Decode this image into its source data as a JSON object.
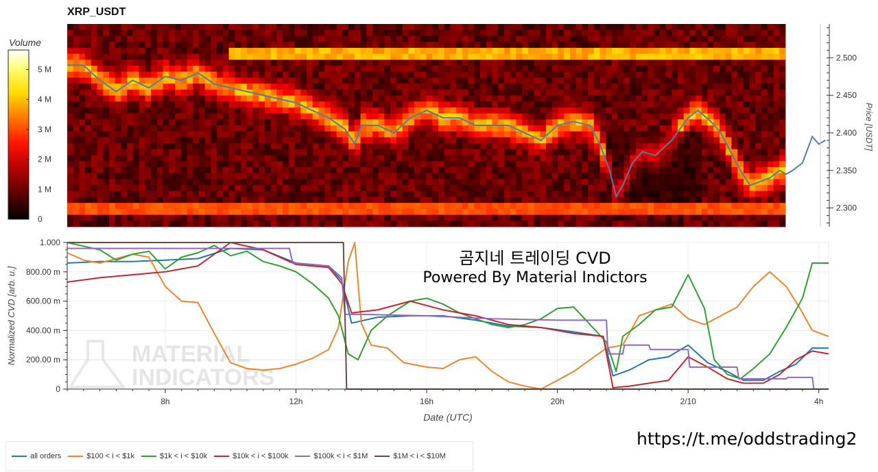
{
  "header": {
    "title": "XRP_USDT"
  },
  "overlay": {
    "line1": "곰지네 트레이딩 CVD",
    "line2": "Powered By Material Indictors"
  },
  "watermark": {
    "line1": "MATERIAL",
    "line2": "INDICATORS",
    "icon": "flask-icon"
  },
  "footer": {
    "link": "https://t.me/oddstrading2"
  },
  "colorbar": {
    "label": "Volume",
    "ticks": [
      "0",
      "1 M",
      "2 M",
      "3 M",
      "4 M",
      "5 M"
    ],
    "tick_values": [
      0,
      1,
      2,
      3,
      4,
      5
    ]
  },
  "colors": {
    "all": "#1f77b4",
    "s100": "#f0832a",
    "s1k": "#2ca02c",
    "s10k": "#c1272d",
    "s100k": "#9467bd",
    "s1m": "#6b4b3e",
    "price": "#4a7fa8"
  },
  "chart_data": [
    {
      "type": "heatmap",
      "title": "XRP_USDT",
      "ylabel": "Price [USDT]",
      "ylim": [
        2.275,
        2.545
      ],
      "yticks": [
        2.3,
        2.35,
        2.4,
        2.45,
        2.5
      ],
      "ytick_labels": [
        "2.300",
        "2.350",
        "2.400",
        "2.450",
        "2.500"
      ],
      "colorscale": "hot",
      "price_line": {
        "x": [
          5.0,
          5.5,
          6.0,
          6.5,
          7.0,
          7.5,
          8.0,
          8.5,
          9.0,
          9.5,
          10.0,
          10.5,
          11.0,
          11.5,
          12.0,
          12.5,
          13.0,
          13.5,
          13.8,
          14.0,
          14.5,
          15.0,
          15.5,
          16.0,
          16.5,
          17.0,
          17.5,
          18.0,
          18.5,
          19.0,
          19.5,
          20.0,
          20.5,
          21.0,
          21.3,
          21.6,
          21.8,
          22.0,
          22.3,
          22.6,
          23.0,
          23.5,
          24.0,
          24.3,
          24.7,
          25.0,
          25.3,
          25.6,
          25.9,
          26.2,
          26.5,
          26.8,
          27.0,
          27.2,
          27.5,
          27.8,
          28.0,
          28.2
        ],
        "y": [
          2.49,
          2.49,
          2.47,
          2.455,
          2.47,
          2.46,
          2.475,
          2.47,
          2.48,
          2.465,
          2.46,
          2.455,
          2.45,
          2.445,
          2.44,
          2.43,
          2.42,
          2.405,
          2.385,
          2.41,
          2.41,
          2.4,
          2.42,
          2.43,
          2.42,
          2.42,
          2.41,
          2.41,
          2.41,
          2.4,
          2.39,
          2.41,
          2.415,
          2.41,
          2.385,
          2.35,
          2.315,
          2.33,
          2.36,
          2.375,
          2.37,
          2.39,
          2.42,
          2.43,
          2.415,
          2.4,
          2.375,
          2.35,
          2.33,
          2.335,
          2.34,
          2.35,
          2.345,
          2.35,
          2.36,
          2.395,
          2.385,
          2.39
        ]
      }
    },
    {
      "type": "line",
      "xlabel": "Date (UTC)",
      "ylabel": "Normalized CVD [arb. u.]",
      "xlim": [
        5.0,
        28.3
      ],
      "ylim": [
        0,
        1
      ],
      "xticks": [
        8,
        12,
        16,
        20,
        24,
        28
      ],
      "xtick_labels": [
        "8h",
        "12h",
        "16h",
        "20h",
        "2/10",
        "4h"
      ],
      "yticks": [
        0,
        0.2,
        0.4,
        0.6,
        0.8,
        1.0
      ],
      "ytick_labels": [
        "0",
        "200.00 m",
        "400.00 m",
        "600.00 m",
        "800.00 m",
        "1.000"
      ],
      "series": [
        {
          "name": "all orders",
          "color_key": "all",
          "x": [
            5.0,
            6,
            7,
            8,
            9,
            10,
            11,
            12,
            13,
            13.4,
            13.7,
            14.5,
            15.5,
            16.5,
            17.5,
            18.5,
            19.5,
            20.5,
            21.4,
            21.7,
            22.2,
            22.8,
            23.4,
            24.0,
            24.6,
            25.2,
            25.7,
            26.3,
            26.8,
            27.3,
            27.8,
            28.3
          ],
          "y": [
            0.86,
            0.87,
            0.87,
            0.88,
            0.89,
            0.96,
            0.95,
            0.86,
            0.84,
            0.74,
            0.45,
            0.49,
            0.5,
            0.5,
            0.47,
            0.43,
            0.42,
            0.39,
            0.36,
            0.09,
            0.13,
            0.2,
            0.22,
            0.3,
            0.18,
            0.12,
            0.06,
            0.06,
            0.12,
            0.17,
            0.28,
            0.28
          ]
        },
        {
          "name": "$100 < i < $1k",
          "color_key": "s100",
          "x": [
            5.0,
            5.5,
            6,
            7,
            7.5,
            8,
            8.5,
            9,
            9.5,
            10,
            10.5,
            11,
            11.5,
            12,
            12.5,
            13,
            13.3,
            13.6,
            13.8,
            14.0,
            14.3,
            14.8,
            15.3,
            16,
            16.5,
            17,
            17.5,
            18,
            18.5,
            19,
            19.5,
            20,
            20.5,
            21.0,
            21.5,
            22,
            22.5,
            23.0,
            23.5,
            24.0,
            24.5,
            25.0,
            25.5,
            26.0,
            26.5,
            27.0,
            27.4,
            27.8,
            28.3
          ],
          "y": [
            0.93,
            0.88,
            0.86,
            0.92,
            0.9,
            0.7,
            0.6,
            0.59,
            0.38,
            0.18,
            0.14,
            0.13,
            0.14,
            0.17,
            0.21,
            0.27,
            0.42,
            0.87,
            1.0,
            0.45,
            0.3,
            0.28,
            0.18,
            0.15,
            0.14,
            0.2,
            0.22,
            0.12,
            0.05,
            0.02,
            0.0,
            0.06,
            0.12,
            0.2,
            0.28,
            0.3,
            0.5,
            0.54,
            0.58,
            0.48,
            0.44,
            0.5,
            0.56,
            0.7,
            0.8,
            0.7,
            0.56,
            0.4,
            0.36
          ]
        },
        {
          "name": "$1k < i < $10k",
          "color_key": "s1k",
          "x": [
            5.0,
            6,
            6.5,
            7,
            7.5,
            8,
            8.5,
            9,
            9.5,
            10,
            10.5,
            11,
            11.5,
            12,
            12.5,
            13,
            13.3,
            13.6,
            13.9,
            14.3,
            14.8,
            15.5,
            16.0,
            16.5,
            17,
            17.5,
            18,
            18.5,
            19,
            19.5,
            20,
            20.5,
            21.0,
            21.5,
            21.8,
            22.0,
            22.5,
            23.0,
            23.5,
            24.0,
            24.5,
            24.8,
            25.2,
            25.6,
            26.0,
            26.5,
            27.0,
            27.5,
            27.8,
            28.3
          ],
          "y": [
            1.0,
            0.95,
            0.88,
            0.92,
            0.94,
            0.82,
            0.9,
            0.93,
            0.98,
            0.91,
            0.94,
            0.87,
            0.84,
            0.8,
            0.72,
            0.62,
            0.5,
            0.24,
            0.2,
            0.4,
            0.5,
            0.6,
            0.62,
            0.58,
            0.52,
            0.48,
            0.44,
            0.42,
            0.44,
            0.48,
            0.55,
            0.56,
            0.44,
            0.32,
            0.12,
            0.36,
            0.44,
            0.54,
            0.56,
            0.78,
            0.55,
            0.2,
            0.1,
            0.07,
            0.14,
            0.24,
            0.42,
            0.62,
            0.86,
            0.86
          ]
        },
        {
          "name": "$10k < i < $100k",
          "color_key": "s10k",
          "x": [
            5.0,
            6,
            7,
            8,
            9,
            10,
            11,
            12,
            13,
            13.4,
            13.7,
            14.5,
            15.5,
            16.5,
            17.5,
            18.5,
            19.5,
            20.5,
            21.4,
            21.7,
            22.2,
            22.8,
            23.4,
            24.0,
            24.6,
            25.2,
            25.7,
            26.3,
            26.8,
            27.3,
            27.8,
            28.3
          ],
          "y": [
            0.73,
            0.76,
            0.78,
            0.8,
            0.84,
            1.0,
            0.95,
            0.85,
            0.83,
            0.72,
            0.52,
            0.54,
            0.6,
            0.54,
            0.5,
            0.44,
            0.42,
            0.38,
            0.36,
            0.01,
            0.02,
            0.04,
            0.06,
            0.22,
            0.15,
            0.07,
            0.04,
            0.04,
            0.1,
            0.2,
            0.26,
            0.24
          ]
        },
        {
          "name": "$100k < i < $1M",
          "color_key": "s100k",
          "x": [
            5.0,
            6,
            8,
            10,
            11.8,
            11.9,
            13.0,
            13.4,
            13.5,
            14,
            16,
            18,
            20,
            21.5,
            21.55,
            22.0,
            22.05,
            22.8,
            22.85,
            24.0,
            24.05,
            25.5,
            25.55,
            27.0,
            27.05,
            27.8,
            27.85,
            28.3
          ],
          "y": [
            0.96,
            0.96,
            0.96,
            0.96,
            0.96,
            0.86,
            0.84,
            0.76,
            0.51,
            0.51,
            0.5,
            0.48,
            0.47,
            0.47,
            0.24,
            0.24,
            0.3,
            0.3,
            0.27,
            0.27,
            0.15,
            0.15,
            0.07,
            0.07,
            0.08,
            0.08,
            0.0,
            0.0
          ]
        },
        {
          "name": "$1M < i < $10M",
          "color_key": "s1m",
          "x": [
            5.0,
            13.45,
            13.55,
            28.3
          ],
          "y": [
            1.0,
            1.0,
            0.0,
            0.0
          ]
        }
      ]
    }
  ]
}
